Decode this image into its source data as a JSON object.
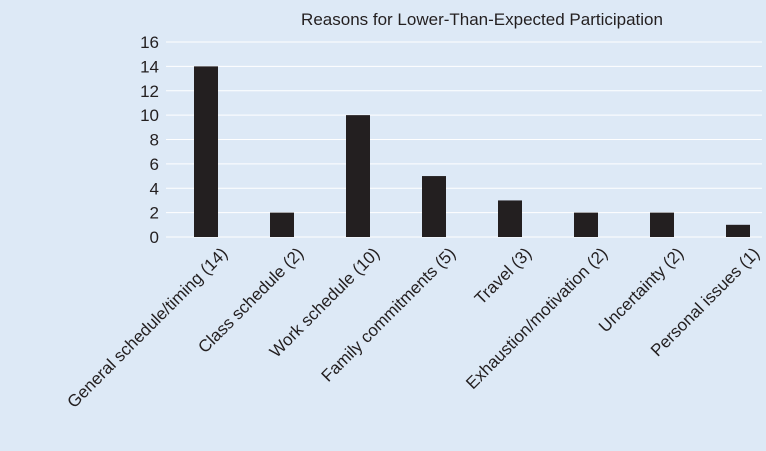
{
  "chart_data": {
    "type": "bar",
    "title": "Reasons for Lower-Than-Expected Participation",
    "categories": [
      "General schedule/timing (14)",
      "Class schedule (2)",
      "Work schedule (10)",
      "Family commitments (5)",
      "Travel (3)",
      "Exhaustion/motivation (2)",
      "Uncertainty (2)",
      "Personal issues (1)"
    ],
    "values": [
      14,
      2,
      10,
      5,
      3,
      2,
      2,
      1
    ],
    "ylim": [
      0,
      16
    ],
    "yticks": [
      "0",
      "2",
      "4",
      "6",
      "8",
      "10",
      "12",
      "14",
      "16"
    ],
    "xlabel": "",
    "ylabel": "",
    "grid": true,
    "colors": {
      "background": "#dde9f6",
      "bar": "#231f20",
      "grid": "#ffffff",
      "text": "#231f20"
    }
  }
}
